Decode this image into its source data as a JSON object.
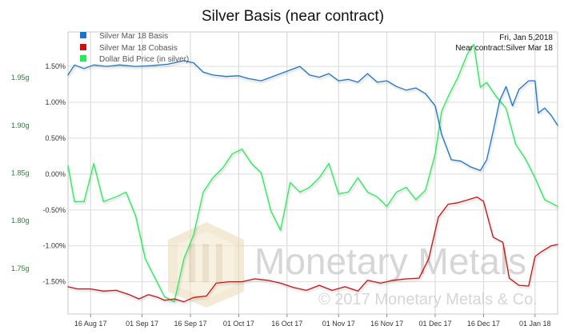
{
  "title": "Silver Basis (near contract)",
  "info": {
    "date": "Fri, Jan 5,2018",
    "contract": "Near contract:Silver Mar 18"
  },
  "watermark": {
    "brand": "Monetary Metals",
    "copyright": "© 2017 Monetary Metals & Co."
  },
  "colors": {
    "basis": "#1a75c9",
    "cobasis": "#cc1111",
    "dollar": "#22ee55",
    "left_axis_text": "#2e7d32",
    "grid": "#d0d0d0",
    "watermark": "#c4c4c4",
    "logo": "#e9d7b4"
  },
  "chart_data": {
    "type": "line",
    "title": "Silver Basis (near contract)",
    "legend": {
      "placement": "top-left",
      "entries": [
        "Silver Mar 18 Basis",
        "Silver Mar 18 Cobasis",
        "Dollar Bid Price (in silver)"
      ]
    },
    "x_axis": {
      "type": "date",
      "range": [
        "2017-08-09",
        "2018-01-08"
      ],
      "ticks": [
        "16 Aug 17",
        "01 Sep 17",
        "16 Sep 17",
        "01 Oct 17",
        "16 Oct 17",
        "01 Nov 17",
        "16 Nov 17",
        "01 Dec 17",
        "16 Dec 17",
        "01 Jan 18"
      ]
    },
    "y_left": {
      "label": "",
      "ticks": [
        "1.75g",
        "1.80g",
        "1.85g",
        "1.90g",
        "1.95g"
      ],
      "range": [
        1.702,
        1.998
      ]
    },
    "y_right": {
      "label": "",
      "ticks": [
        "-1.50%",
        "-1.00%",
        "-0.50%",
        "0.00%",
        "0.50%",
        "1.00%",
        "1.50%"
      ],
      "range": [
        -1.95,
        1.98
      ]
    },
    "grid": true,
    "series": [
      {
        "name": "Silver Mar 18 Basis",
        "axis": "right",
        "color": "#1a75c9",
        "points": [
          [
            "2017-08-09",
            1.38
          ],
          [
            "2017-08-11",
            1.52
          ],
          [
            "2017-08-14",
            1.47
          ],
          [
            "2017-08-17",
            1.52
          ],
          [
            "2017-08-21",
            1.5
          ],
          [
            "2017-08-25",
            1.52
          ],
          [
            "2017-08-30",
            1.5
          ],
          [
            "2017-09-04",
            1.51
          ],
          [
            "2017-09-09",
            1.53
          ],
          [
            "2017-09-14",
            1.58
          ],
          [
            "2017-09-17",
            1.55
          ],
          [
            "2017-09-20",
            1.42
          ],
          [
            "2017-09-23",
            1.38
          ],
          [
            "2017-09-27",
            1.36
          ],
          [
            "2017-10-01",
            1.37
          ],
          [
            "2017-10-04",
            1.33
          ],
          [
            "2017-10-08",
            1.3
          ],
          [
            "2017-10-11",
            1.35
          ],
          [
            "2017-10-14",
            1.4
          ],
          [
            "2017-10-17",
            1.45
          ],
          [
            "2017-10-20",
            1.5
          ],
          [
            "2017-10-23",
            1.38
          ],
          [
            "2017-10-26",
            1.35
          ],
          [
            "2017-10-29",
            1.4
          ],
          [
            "2017-11-01",
            1.3
          ],
          [
            "2017-11-04",
            1.32
          ],
          [
            "2017-11-07",
            1.28
          ],
          [
            "2017-11-10",
            1.4
          ],
          [
            "2017-11-13",
            1.28
          ],
          [
            "2017-11-16",
            1.3
          ],
          [
            "2017-11-19",
            1.22
          ],
          [
            "2017-11-22",
            1.17
          ],
          [
            "2017-11-25",
            1.2
          ],
          [
            "2017-11-28",
            1.12
          ],
          [
            "2017-12-01",
            0.95
          ],
          [
            "2017-12-03",
            0.55
          ],
          [
            "2017-12-06",
            0.2
          ],
          [
            "2017-12-09",
            0.18
          ],
          [
            "2017-12-12",
            0.1
          ],
          [
            "2017-12-15",
            0.05
          ],
          [
            "2017-12-17",
            0.2
          ],
          [
            "2017-12-19",
            0.6
          ],
          [
            "2017-12-21",
            1.02
          ],
          [
            "2017-12-23",
            1.22
          ],
          [
            "2017-12-25",
            0.95
          ],
          [
            "2017-12-27",
            1.18
          ],
          [
            "2017-12-30",
            1.3
          ],
          [
            "2018-01-01",
            1.3
          ],
          [
            "2018-01-02",
            0.85
          ],
          [
            "2018-01-04",
            0.92
          ],
          [
            "2018-01-06",
            0.82
          ],
          [
            "2018-01-08",
            0.68
          ]
        ]
      },
      {
        "name": "Silver Mar 18 Cobasis",
        "axis": "right",
        "color": "#cc1111",
        "points": [
          [
            "2017-08-09",
            -1.57
          ],
          [
            "2017-08-12",
            -1.6
          ],
          [
            "2017-08-16",
            -1.6
          ],
          [
            "2017-08-20",
            -1.63
          ],
          [
            "2017-08-24",
            -1.62
          ],
          [
            "2017-08-28",
            -1.68
          ],
          [
            "2017-08-31",
            -1.74
          ],
          [
            "2017-09-03",
            -1.68
          ],
          [
            "2017-09-06",
            -1.72
          ],
          [
            "2017-09-08",
            -1.76
          ],
          [
            "2017-09-11",
            -1.74
          ],
          [
            "2017-09-14",
            -1.78
          ],
          [
            "2017-09-17",
            -1.72
          ],
          [
            "2017-09-21",
            -1.7
          ],
          [
            "2017-09-24",
            -1.52
          ],
          [
            "2017-09-28",
            -1.5
          ],
          [
            "2017-10-02",
            -1.5
          ],
          [
            "2017-10-06",
            -1.46
          ],
          [
            "2017-10-10",
            -1.48
          ],
          [
            "2017-10-14",
            -1.52
          ],
          [
            "2017-10-18",
            -1.58
          ],
          [
            "2017-10-22",
            -1.62
          ],
          [
            "2017-10-26",
            -1.55
          ],
          [
            "2017-10-30",
            -1.62
          ],
          [
            "2017-11-03",
            -1.57
          ],
          [
            "2017-11-07",
            -1.63
          ],
          [
            "2017-11-10",
            -1.48
          ],
          [
            "2017-11-14",
            -1.52
          ],
          [
            "2017-11-18",
            -1.48
          ],
          [
            "2017-11-22",
            -1.46
          ],
          [
            "2017-11-26",
            -1.45
          ],
          [
            "2017-11-29",
            -1.18
          ],
          [
            "2017-12-02",
            -0.6
          ],
          [
            "2017-12-05",
            -0.42
          ],
          [
            "2017-12-08",
            -0.4
          ],
          [
            "2017-12-11",
            -0.36
          ],
          [
            "2017-12-14",
            -0.32
          ],
          [
            "2017-12-16",
            -0.38
          ],
          [
            "2017-12-19",
            -0.88
          ],
          [
            "2017-12-22",
            -0.95
          ],
          [
            "2017-12-24",
            -1.45
          ],
          [
            "2017-12-27",
            -1.55
          ],
          [
            "2017-12-30",
            -1.56
          ],
          [
            "2018-01-01",
            -1.15
          ],
          [
            "2018-01-03",
            -1.08
          ],
          [
            "2018-01-06",
            -1.0
          ],
          [
            "2018-01-08",
            -0.98
          ]
        ]
      },
      {
        "name": "Dollar Bid Price (in silver)",
        "axis": "left",
        "color": "#22ee55",
        "points": [
          [
            "2017-08-09",
            1.858
          ],
          [
            "2017-08-11",
            1.82
          ],
          [
            "2017-08-14",
            1.82
          ],
          [
            "2017-08-17",
            1.86
          ],
          [
            "2017-08-20",
            1.82
          ],
          [
            "2017-08-24",
            1.825
          ],
          [
            "2017-08-27",
            1.83
          ],
          [
            "2017-08-30",
            1.805
          ],
          [
            "2017-09-02",
            1.76
          ],
          [
            "2017-09-05",
            1.74
          ],
          [
            "2017-09-08",
            1.72
          ],
          [
            "2017-09-11",
            1.715
          ],
          [
            "2017-09-14",
            1.76
          ],
          [
            "2017-09-17",
            1.785
          ],
          [
            "2017-09-20",
            1.83
          ],
          [
            "2017-09-23",
            1.845
          ],
          [
            "2017-09-26",
            1.855
          ],
          [
            "2017-09-29",
            1.87
          ],
          [
            "2017-10-02",
            1.875
          ],
          [
            "2017-10-05",
            1.86
          ],
          [
            "2017-10-08",
            1.85
          ],
          [
            "2017-10-11",
            1.81
          ],
          [
            "2017-10-14",
            1.79
          ],
          [
            "2017-10-17",
            1.84
          ],
          [
            "2017-10-20",
            1.83
          ],
          [
            "2017-10-23",
            1.835
          ],
          [
            "2017-10-26",
            1.845
          ],
          [
            "2017-10-29",
            1.86
          ],
          [
            "2017-11-01",
            1.828
          ],
          [
            "2017-11-04",
            1.83
          ],
          [
            "2017-11-07",
            1.845
          ],
          [
            "2017-11-10",
            1.83
          ],
          [
            "2017-11-13",
            1.825
          ],
          [
            "2017-11-16",
            1.815
          ],
          [
            "2017-11-19",
            1.83
          ],
          [
            "2017-11-22",
            1.835
          ],
          [
            "2017-11-25",
            1.822
          ],
          [
            "2017-11-28",
            1.832
          ],
          [
            "2017-12-01",
            1.87
          ],
          [
            "2017-12-03",
            1.915
          ],
          [
            "2017-12-05",
            1.93
          ],
          [
            "2017-12-08",
            1.95
          ],
          [
            "2017-12-11",
            1.975
          ],
          [
            "2017-12-13",
            1.985
          ],
          [
            "2017-12-15",
            1.94
          ],
          [
            "2017-12-17",
            1.945
          ],
          [
            "2017-12-20",
            1.93
          ],
          [
            "2017-12-23",
            1.918
          ],
          [
            "2017-12-26",
            1.88
          ],
          [
            "2017-12-29",
            1.865
          ],
          [
            "2018-01-01",
            1.845
          ],
          [
            "2018-01-04",
            1.822
          ],
          [
            "2018-01-08",
            1.815
          ]
        ]
      }
    ]
  }
}
